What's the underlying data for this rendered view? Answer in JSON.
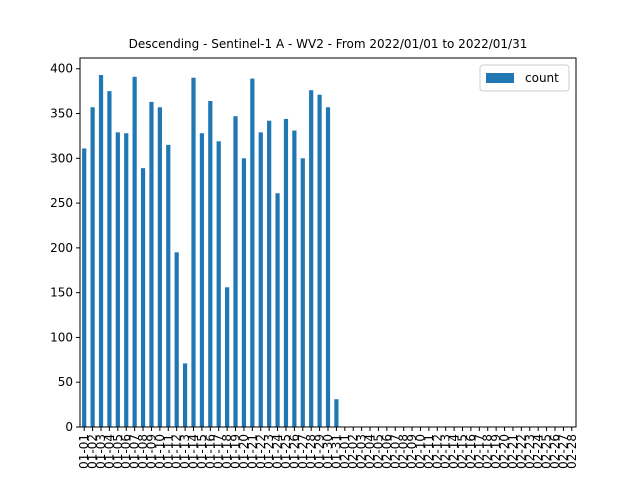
{
  "chart_data": {
    "type": "bar",
    "title": "Descending - Sentinel-1 A - WV2 - From 2022/01/01 to 2022/01/31",
    "xlabel": "",
    "ylabel": "",
    "ylim": [
      0,
      412
    ],
    "yticks": [
      0,
      50,
      100,
      150,
      200,
      250,
      300,
      350,
      400
    ],
    "grid": false,
    "legend": {
      "position": "top-right"
    },
    "colors": {
      "bar": "#1f77b4",
      "axis": "#000000",
      "background": "#ffffff"
    },
    "categories": [
      "01-01",
      "01-02",
      "01-03",
      "01-04",
      "01-05",
      "01-06",
      "01-07",
      "01-08",
      "01-09",
      "01-10",
      "01-11",
      "01-12",
      "01-13",
      "01-14",
      "01-15",
      "01-16",
      "01-17",
      "01-18",
      "01-19",
      "01-20",
      "01-21",
      "01-22",
      "01-23",
      "01-24",
      "01-25",
      "01-26",
      "01-27",
      "01-28",
      "01-29",
      "01-30",
      "01-31",
      "02-01",
      "02-02",
      "02-03",
      "02-04",
      "02-05",
      "02-06",
      "02-07",
      "02-08",
      "02-09",
      "02-10",
      "02-11",
      "02-12",
      "02-13",
      "02-14",
      "02-15",
      "02-16",
      "02-17",
      "02-18",
      "02-19",
      "02-20",
      "02-21",
      "02-22",
      "02-23",
      "02-24",
      "02-25",
      "02-26",
      "02-27",
      "02-28"
    ],
    "series": [
      {
        "name": "count",
        "values": [
          311,
          357,
          393,
          375,
          329,
          328,
          391,
          289,
          363,
          357,
          315,
          195,
          71,
          390,
          328,
          364,
          319,
          156,
          347,
          300,
          389,
          329,
          342,
          261,
          344,
          331,
          300,
          376,
          371,
          357,
          31,
          0,
          0,
          0,
          0,
          0,
          0,
          0,
          0,
          0,
          0,
          0,
          0,
          0,
          0,
          0,
          0,
          0,
          0,
          0,
          0,
          0,
          0,
          0,
          0,
          0,
          0,
          0,
          0
        ]
      }
    ]
  }
}
